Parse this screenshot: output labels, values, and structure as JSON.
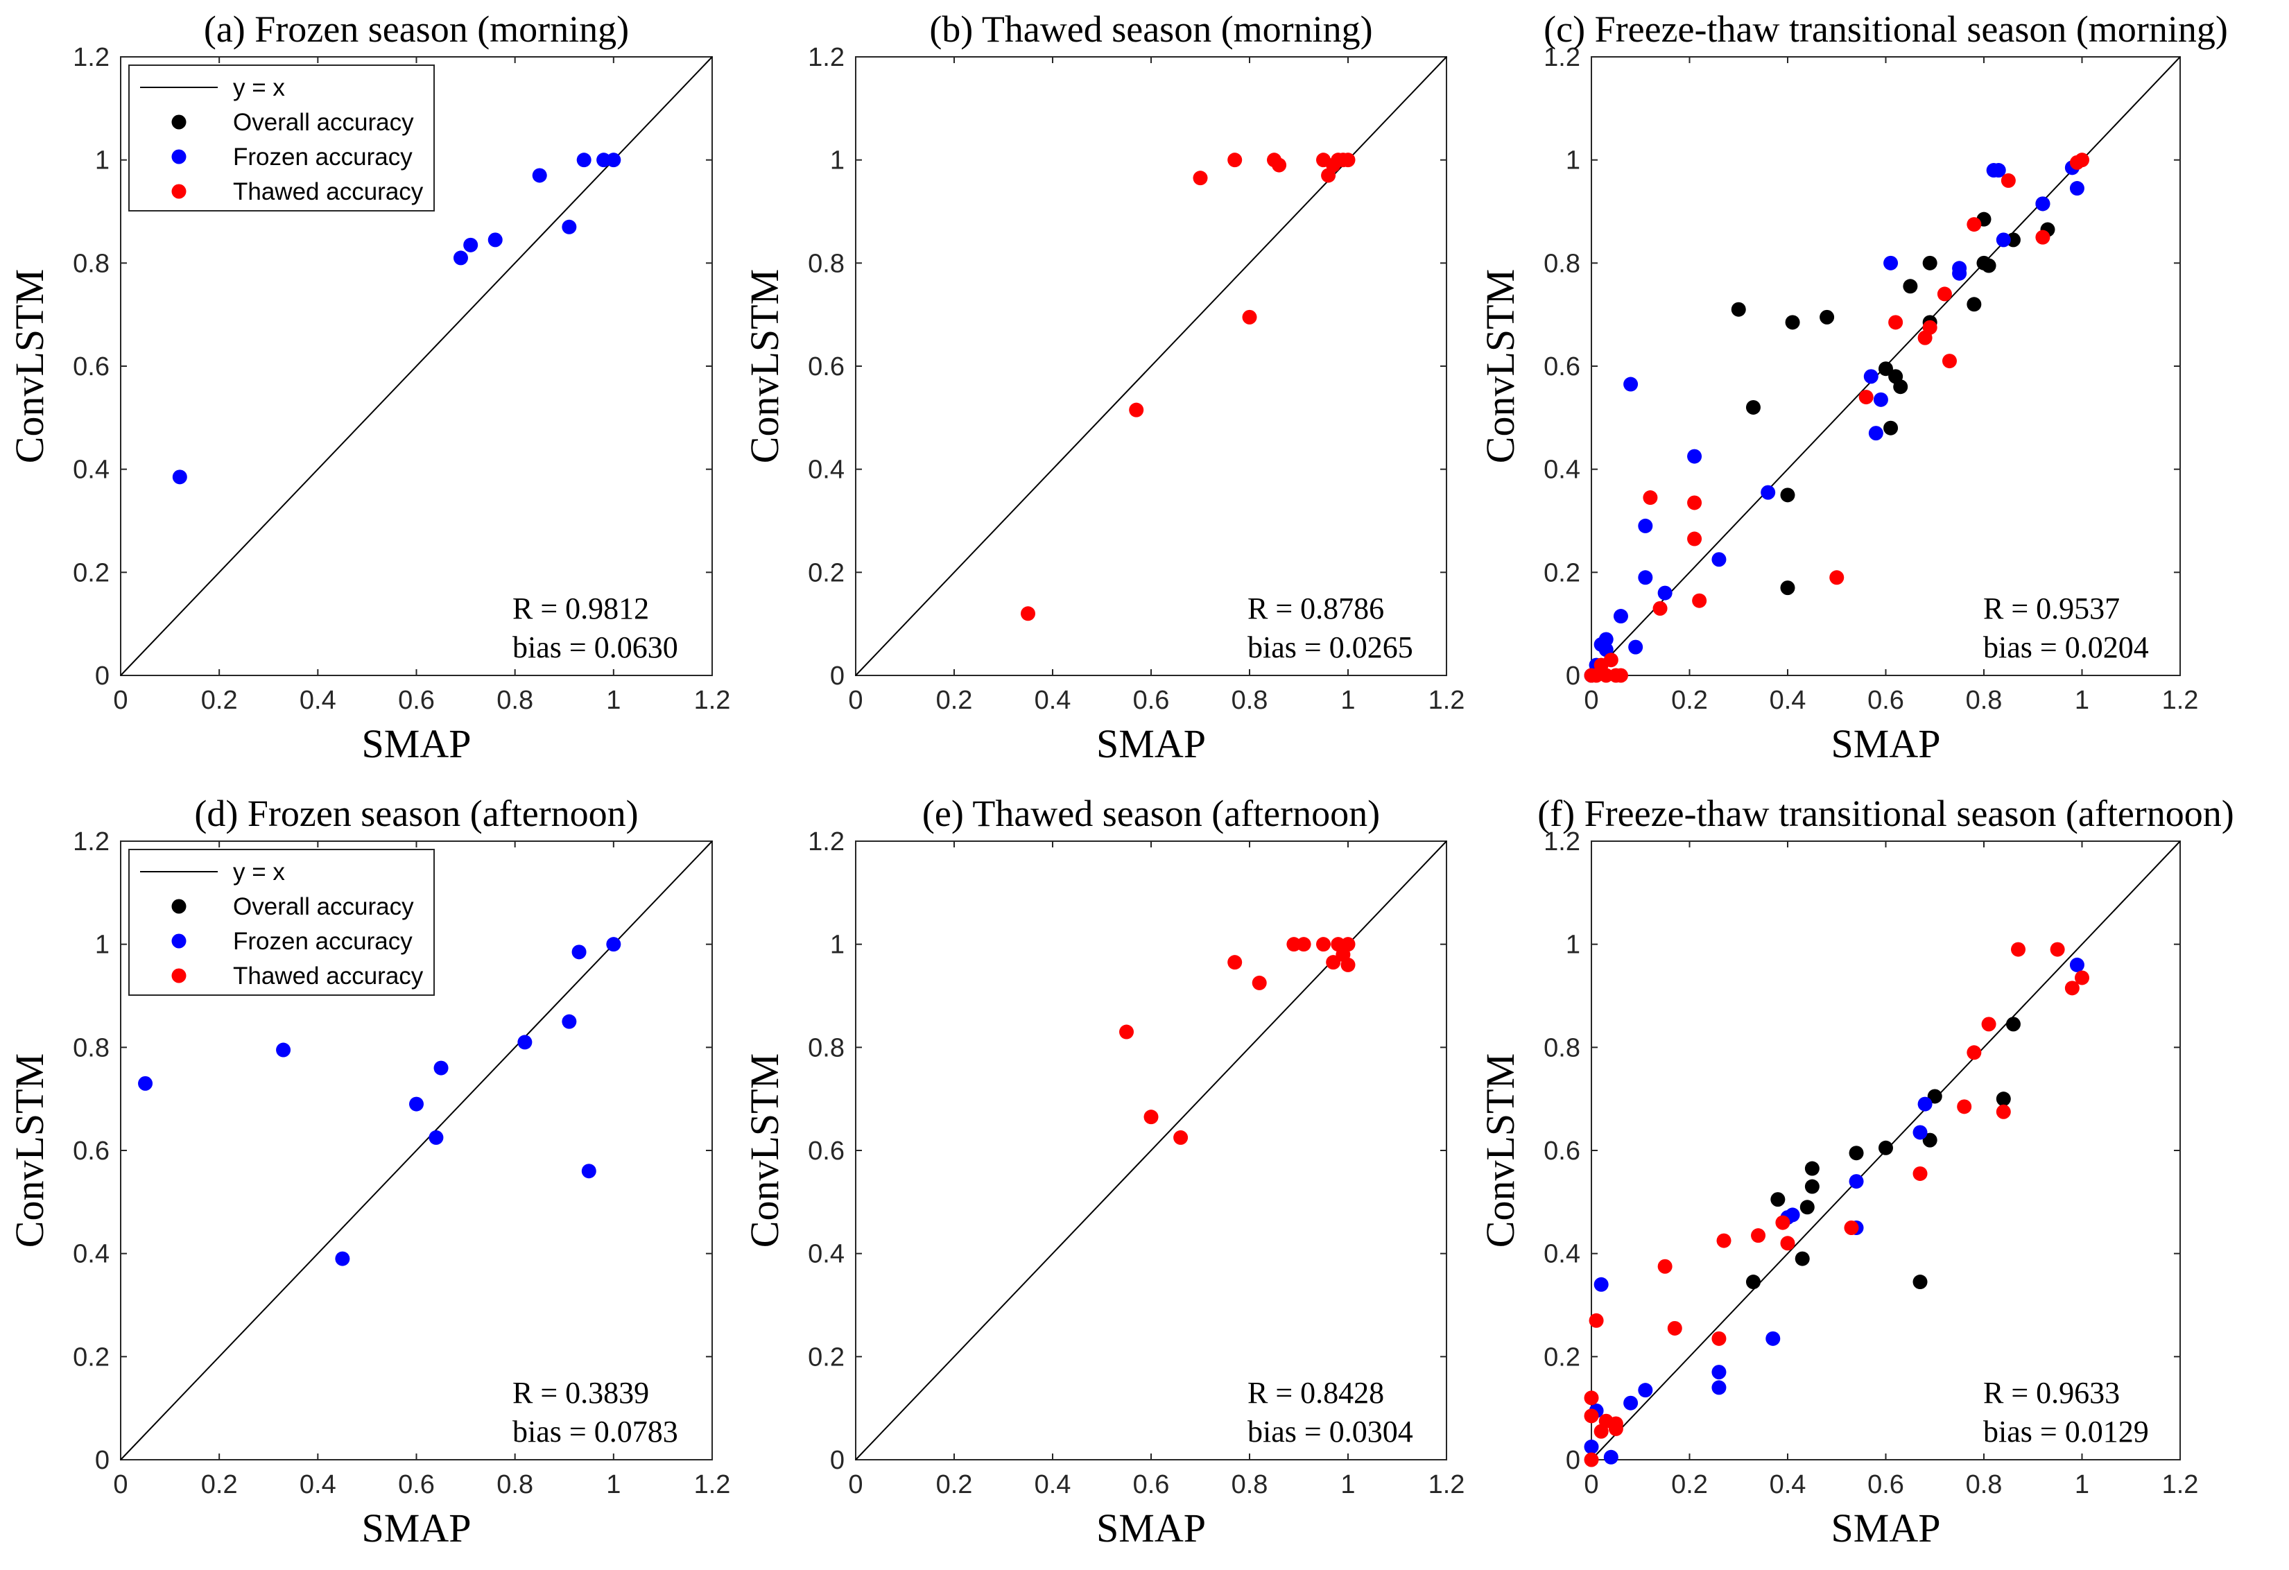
{
  "figure": {
    "description_title": ""
  },
  "chart_data": [
    {
      "id": "a",
      "type": "scatter",
      "title": "(a) Frozen season (morning)",
      "xlabel": "SMAP",
      "ylabel": "ConvLSTM",
      "xlim": [
        0,
        1.2
      ],
      "ylim": [
        0,
        1.2
      ],
      "xticks": [
        "0",
        "0.2",
        "0.4",
        "0.6",
        "0.8",
        "1",
        "1.2"
      ],
      "yticks": [
        "0",
        "0.2",
        "0.4",
        "0.6",
        "0.8",
        "1",
        "1.2"
      ],
      "reference_line": "y = x",
      "legend": [
        {
          "label": "y = x",
          "kind": "line",
          "color": "#000000"
        },
        {
          "label": "Overall accuracy",
          "kind": "marker",
          "color": "#000000"
        },
        {
          "label": "Frozen accuracy",
          "kind": "marker",
          "color": "#0000ff"
        },
        {
          "label": "Thawed accuracy",
          "kind": "marker",
          "color": "#ff0000"
        }
      ],
      "stats": {
        "r": "R = 0.9812",
        "bias": "bias = 0.0630"
      },
      "series": [
        {
          "name": "Frozen accuracy",
          "color": "#0000ff",
          "points": [
            [
              0.12,
              0.385
            ],
            [
              0.69,
              0.81
            ],
            [
              0.71,
              0.835
            ],
            [
              0.76,
              0.845
            ],
            [
              0.85,
              0.97
            ],
            [
              0.91,
              0.87
            ],
            [
              0.94,
              1.0
            ],
            [
              0.98,
              1.0
            ],
            [
              1.0,
              1.0
            ]
          ]
        }
      ]
    },
    {
      "id": "b",
      "type": "scatter",
      "title": "(b) Thawed season (morning)",
      "xlabel": "SMAP",
      "ylabel": "ConvLSTM",
      "xlim": [
        0,
        1.2
      ],
      "ylim": [
        0,
        1.2
      ],
      "xticks": [
        "0",
        "0.2",
        "0.4",
        "0.6",
        "0.8",
        "1",
        "1.2"
      ],
      "yticks": [
        "0",
        "0.2",
        "0.4",
        "0.6",
        "0.8",
        "1",
        "1.2"
      ],
      "reference_line": "y = x",
      "legend": [],
      "stats": {
        "r": "R = 0.8786",
        "bias": "bias = 0.0265"
      },
      "series": [
        {
          "name": "Thawed accuracy",
          "color": "#ff0000",
          "points": [
            [
              0.35,
              0.12
            ],
            [
              0.57,
              0.515
            ],
            [
              0.7,
              0.965
            ],
            [
              0.77,
              1.0
            ],
            [
              0.8,
              0.695
            ],
            [
              0.85,
              1.0
            ],
            [
              0.86,
              0.99
            ],
            [
              0.95,
              1.0
            ],
            [
              0.96,
              0.97
            ],
            [
              0.97,
              0.99
            ],
            [
              0.98,
              1.0
            ],
            [
              0.99,
              1.0
            ],
            [
              1.0,
              1.0
            ]
          ]
        }
      ]
    },
    {
      "id": "c",
      "type": "scatter",
      "title": "(c) Freeze-thaw transitional season (morning)",
      "xlabel": "SMAP",
      "ylabel": "ConvLSTM",
      "xlim": [
        0,
        1.2
      ],
      "ylim": [
        0,
        1.2
      ],
      "xticks": [
        "0",
        "0.2",
        "0.4",
        "0.6",
        "0.8",
        "1",
        "1.2"
      ],
      "yticks": [
        "0",
        "0.2",
        "0.4",
        "0.6",
        "0.8",
        "1",
        "1.2"
      ],
      "reference_line": "y = x",
      "legend": [],
      "stats": {
        "r": "R = 0.9537",
        "bias": "bias = 0.0204"
      },
      "series": [
        {
          "name": "Overall accuracy",
          "color": "#000000",
          "points": [
            [
              0.3,
              0.71
            ],
            [
              0.33,
              0.52
            ],
            [
              0.4,
              0.35
            ],
            [
              0.4,
              0.17
            ],
            [
              0.41,
              0.685
            ],
            [
              0.48,
              0.695
            ],
            [
              0.6,
              0.595
            ],
            [
              0.61,
              0.48
            ],
            [
              0.62,
              0.58
            ],
            [
              0.63,
              0.56
            ],
            [
              0.65,
              0.755
            ],
            [
              0.69,
              0.8
            ],
            [
              0.69,
              0.685
            ],
            [
              0.78,
              0.72
            ],
            [
              0.8,
              0.8
            ],
            [
              0.81,
              0.795
            ],
            [
              0.8,
              0.885
            ],
            [
              0.86,
              0.845
            ],
            [
              0.93,
              0.865
            ],
            [
              0.92,
              0.915
            ]
          ]
        },
        {
          "name": "Frozen accuracy",
          "color": "#0000ff",
          "points": [
            [
              0.0,
              0.0
            ],
            [
              0.01,
              0.02
            ],
            [
              0.02,
              0.06
            ],
            [
              0.03,
              0.07
            ],
            [
              0.03,
              0.05
            ],
            [
              0.06,
              0.115
            ],
            [
              0.08,
              0.565
            ],
            [
              0.09,
              0.055
            ],
            [
              0.11,
              0.29
            ],
            [
              0.11,
              0.19
            ],
            [
              0.15,
              0.16
            ],
            [
              0.21,
              0.425
            ],
            [
              0.26,
              0.225
            ],
            [
              0.36,
              0.355
            ],
            [
              0.57,
              0.58
            ],
            [
              0.58,
              0.47
            ],
            [
              0.59,
              0.535
            ],
            [
              0.61,
              0.8
            ],
            [
              0.75,
              0.78
            ],
            [
              0.75,
              0.79
            ],
            [
              0.82,
              0.98
            ],
            [
              0.83,
              0.98
            ],
            [
              0.84,
              0.845
            ],
            [
              0.92,
              0.915
            ],
            [
              0.98,
              0.985
            ],
            [
              0.99,
              0.945
            ]
          ]
        },
        {
          "name": "Thawed accuracy",
          "color": "#ff0000",
          "points": [
            [
              0.0,
              0.0
            ],
            [
              0.01,
              0.0
            ],
            [
              0.02,
              0.02
            ],
            [
              0.03,
              0.0
            ],
            [
              0.04,
              0.03
            ],
            [
              0.05,
              0.0
            ],
            [
              0.06,
              0.0
            ],
            [
              0.12,
              0.345
            ],
            [
              0.14,
              0.13
            ],
            [
              0.21,
              0.265
            ],
            [
              0.21,
              0.335
            ],
            [
              0.22,
              0.145
            ],
            [
              0.5,
              0.19
            ],
            [
              0.56,
              0.54
            ],
            [
              0.62,
              0.685
            ],
            [
              0.68,
              0.655
            ],
            [
              0.69,
              0.675
            ],
            [
              0.72,
              0.74
            ],
            [
              0.73,
              0.61
            ],
            [
              0.78,
              0.875
            ],
            [
              0.85,
              0.96
            ],
            [
              0.92,
              0.85
            ],
            [
              0.99,
              0.995
            ],
            [
              1.0,
              1.0
            ]
          ]
        }
      ]
    },
    {
      "id": "d",
      "type": "scatter",
      "title": "(d) Frozen season (afternoon)",
      "xlabel": "SMAP",
      "ylabel": "ConvLSTM",
      "xlim": [
        0,
        1.2
      ],
      "ylim": [
        0,
        1.2
      ],
      "xticks": [
        "0",
        "0.2",
        "0.4",
        "0.6",
        "0.8",
        "1",
        "1.2"
      ],
      "yticks": [
        "0",
        "0.2",
        "0.4",
        "0.6",
        "0.8",
        "1",
        "1.2"
      ],
      "reference_line": "y = x",
      "legend": [
        {
          "label": "y = x",
          "kind": "line",
          "color": "#000000"
        },
        {
          "label": "Overall accuracy",
          "kind": "marker",
          "color": "#000000"
        },
        {
          "label": "Frozen accuracy",
          "kind": "marker",
          "color": "#0000ff"
        },
        {
          "label": "Thawed accuracy",
          "kind": "marker",
          "color": "#ff0000"
        }
      ],
      "stats": {
        "r": "R = 0.3839",
        "bias": "bias = 0.0783"
      },
      "series": [
        {
          "name": "Frozen accuracy",
          "color": "#0000ff",
          "points": [
            [
              0.05,
              0.73
            ],
            [
              0.33,
              0.795
            ],
            [
              0.45,
              0.39
            ],
            [
              0.6,
              0.69
            ],
            [
              0.64,
              0.625
            ],
            [
              0.65,
              0.76
            ],
            [
              0.82,
              0.81
            ],
            [
              0.91,
              0.85
            ],
            [
              0.93,
              0.985
            ],
            [
              0.95,
              0.56
            ],
            [
              1.0,
              1.0
            ]
          ]
        }
      ]
    },
    {
      "id": "e",
      "type": "scatter",
      "title": "(e) Thawed season (afternoon)",
      "xlabel": "SMAP",
      "ylabel": "ConvLSTM",
      "xlim": [
        0,
        1.2
      ],
      "ylim": [
        0,
        1.2
      ],
      "xticks": [
        "0",
        "0.2",
        "0.4",
        "0.6",
        "0.8",
        "1",
        "1.2"
      ],
      "yticks": [
        "0",
        "0.2",
        "0.4",
        "0.6",
        "0.8",
        "1",
        "1.2"
      ],
      "reference_line": "y = x",
      "legend": [],
      "stats": {
        "r": "R = 0.8428",
        "bias": "bias = 0.0304"
      },
      "series": [
        {
          "name": "Thawed accuracy",
          "color": "#ff0000",
          "points": [
            [
              0.55,
              0.83
            ],
            [
              0.6,
              0.665
            ],
            [
              0.66,
              0.625
            ],
            [
              0.77,
              0.965
            ],
            [
              0.82,
              0.925
            ],
            [
              0.89,
              1.0
            ],
            [
              0.91,
              1.0
            ],
            [
              0.95,
              1.0
            ],
            [
              0.97,
              0.965
            ],
            [
              0.98,
              1.0
            ],
            [
              0.99,
              0.98
            ],
            [
              1.0,
              1.0
            ],
            [
              1.0,
              0.96
            ]
          ]
        }
      ]
    },
    {
      "id": "f",
      "type": "scatter",
      "title": "(f) Freeze-thaw transitional season (afternoon)",
      "xlabel": "SMAP",
      "ylabel": "ConvLSTM",
      "xlim": [
        0,
        1.2
      ],
      "ylim": [
        0,
        1.2
      ],
      "xticks": [
        "0",
        "0.2",
        "0.4",
        "0.6",
        "0.8",
        "1",
        "1.2"
      ],
      "yticks": [
        "0",
        "0.2",
        "0.4",
        "0.6",
        "0.8",
        "1",
        "1.2"
      ],
      "reference_line": "y = x",
      "legend": [],
      "stats": {
        "r": "R = 0.9633",
        "bias": "bias = 0.0129"
      },
      "series": [
        {
          "name": "Overall accuracy",
          "color": "#000000",
          "points": [
            [
              0.33,
              0.345
            ],
            [
              0.38,
              0.505
            ],
            [
              0.43,
              0.39
            ],
            [
              0.44,
              0.49
            ],
            [
              0.45,
              0.53
            ],
            [
              0.45,
              0.565
            ],
            [
              0.54,
              0.595
            ],
            [
              0.6,
              0.605
            ],
            [
              0.67,
              0.345
            ],
            [
              0.69,
              0.62
            ],
            [
              0.7,
              0.705
            ],
            [
              0.84,
              0.7
            ],
            [
              0.86,
              0.845
            ]
          ]
        },
        {
          "name": "Frozen accuracy",
          "color": "#0000ff",
          "points": [
            [
              0.0,
              0.025
            ],
            [
              0.01,
              0.095
            ],
            [
              0.02,
              0.34
            ],
            [
              0.04,
              0.005
            ],
            [
              0.08,
              0.11
            ],
            [
              0.11,
              0.135
            ],
            [
              0.26,
              0.17
            ],
            [
              0.26,
              0.14
            ],
            [
              0.37,
              0.235
            ],
            [
              0.4,
              0.47
            ],
            [
              0.41,
              0.475
            ],
            [
              0.54,
              0.45
            ],
            [
              0.54,
              0.54
            ],
            [
              0.67,
              0.635
            ],
            [
              0.68,
              0.69
            ],
            [
              0.99,
              0.96
            ]
          ]
        },
        {
          "name": "Thawed accuracy",
          "color": "#ff0000",
          "points": [
            [
              0.0,
              0.085
            ],
            [
              0.0,
              0.12
            ],
            [
              0.01,
              0.27
            ],
            [
              0.0,
              0.0
            ],
            [
              0.02,
              0.055
            ],
            [
              0.03,
              0.075
            ],
            [
              0.05,
              0.07
            ],
            [
              0.05,
              0.06
            ],
            [
              0.15,
              0.375
            ],
            [
              0.17,
              0.255
            ],
            [
              0.27,
              0.425
            ],
            [
              0.26,
              0.235
            ],
            [
              0.34,
              0.435
            ],
            [
              0.39,
              0.46
            ],
            [
              0.4,
              0.42
            ],
            [
              0.53,
              0.45
            ],
            [
              0.67,
              0.555
            ],
            [
              0.76,
              0.685
            ],
            [
              0.78,
              0.79
            ],
            [
              0.81,
              0.845
            ],
            [
              0.84,
              0.675
            ],
            [
              0.87,
              0.99
            ],
            [
              0.95,
              0.99
            ],
            [
              0.98,
              0.915
            ],
            [
              1.0,
              0.935
            ]
          ]
        }
      ]
    }
  ]
}
